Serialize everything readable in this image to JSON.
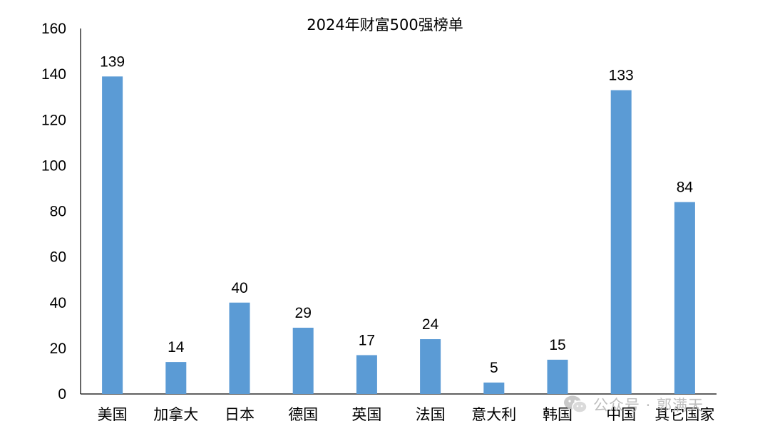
{
  "chart_data": {
    "type": "bar",
    "title": "2024年财富500强榜单",
    "categories": [
      "美国",
      "加拿大",
      "日本",
      "德国",
      "英国",
      "法国",
      "意大利",
      "韩国",
      "中国",
      "其它国家"
    ],
    "values": [
      139,
      14,
      40,
      29,
      17,
      24,
      5,
      15,
      133,
      84
    ],
    "ylim": [
      0,
      160
    ],
    "yticks": [
      0,
      20,
      40,
      60,
      80,
      100,
      120,
      140,
      160
    ],
    "grid": false,
    "legend": "none",
    "bar_color": "#5b9bd5",
    "data_labels": true
  },
  "watermark": {
    "text": "公众号 · 郭满天",
    "icon": "wechat-logo-icon"
  }
}
